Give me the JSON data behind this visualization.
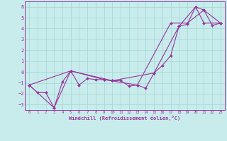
{
  "xlabel": "Windchill (Refroidissement éolien,°C)",
  "bg_color": "#c8ecec",
  "grid_color": "#aad8d8",
  "line_color": "#993399",
  "xlim": [
    -0.5,
    23.5
  ],
  "ylim": [
    -3.5,
    6.5
  ],
  "xticks": [
    0,
    1,
    2,
    3,
    4,
    5,
    6,
    7,
    8,
    9,
    10,
    11,
    12,
    13,
    14,
    15,
    16,
    17,
    18,
    19,
    20,
    21,
    22,
    23
  ],
  "yticks": [
    -3,
    -2,
    -1,
    0,
    1,
    2,
    3,
    4,
    5,
    6
  ],
  "series1": [
    [
      0,
      -1.2
    ],
    [
      1,
      -1.9
    ],
    [
      2,
      -1.9
    ],
    [
      3,
      -3.3
    ],
    [
      4,
      -0.9
    ],
    [
      5,
      0.1
    ],
    [
      6,
      -1.2
    ],
    [
      7,
      -0.6
    ],
    [
      8,
      -0.7
    ],
    [
      9,
      -0.7
    ],
    [
      10,
      -0.8
    ],
    [
      11,
      -0.8
    ],
    [
      12,
      -1.3
    ],
    [
      13,
      -1.2
    ],
    [
      14,
      -1.5
    ],
    [
      15,
      -0.1
    ],
    [
      16,
      0.6
    ],
    [
      17,
      1.5
    ],
    [
      18,
      4.2
    ],
    [
      19,
      4.4
    ],
    [
      20,
      6.0
    ],
    [
      21,
      5.7
    ],
    [
      22,
      4.3
    ],
    [
      23,
      4.5
    ]
  ],
  "series2": [
    [
      0,
      -1.2
    ],
    [
      3,
      -3.3
    ],
    [
      5,
      0.1
    ],
    [
      9,
      -0.7
    ],
    [
      13,
      -1.2
    ],
    [
      17,
      4.5
    ],
    [
      19,
      4.5
    ],
    [
      21,
      5.7
    ],
    [
      23,
      4.5
    ]
  ],
  "series3": [
    [
      0,
      -1.2
    ],
    [
      5,
      0.1
    ],
    [
      10,
      -0.8
    ],
    [
      15,
      -0.1
    ],
    [
      18,
      4.2
    ],
    [
      20,
      6.0
    ],
    [
      21,
      4.5
    ],
    [
      23,
      4.5
    ]
  ]
}
